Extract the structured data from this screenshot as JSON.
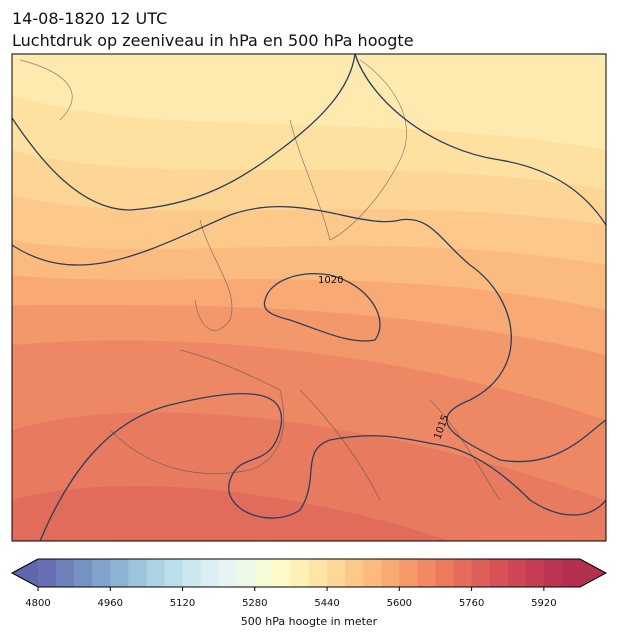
{
  "header": {
    "date": "14-08-1820 12 UTC",
    "subtitle": "Luchtdruk op zeeniveau in hPa en 500 hPa hoogte"
  },
  "map": {
    "contour_labels": [
      "1020",
      "1015"
    ]
  },
  "colorbar": {
    "range": [
      4800,
      6000
    ],
    "ticks": [
      4800,
      4960,
      5120,
      5280,
      5440,
      5600,
      5760,
      5920
    ],
    "label": "500 hPa hoogte in meter",
    "colormap": [
      "#6870b4",
      "#6e81bb",
      "#7792c4",
      "#82a3cb",
      "#8db3d4",
      "#9cc4dc",
      "#abd3e4",
      "#bbdeeb",
      "#cbe7f0",
      "#daeff4",
      "#e6f4f2",
      "#eef8e6",
      "#f6fbd6",
      "#fdfac8",
      "#fef1b6",
      "#fee5a5",
      "#fdd795",
      "#fdc988",
      "#fcba7d",
      "#f9a972",
      "#f69969",
      "#f18a62",
      "#ec7b5e",
      "#e56c5b",
      "#de5e58",
      "#d75157",
      "#cf4656",
      "#c63c53",
      "#bd3450",
      "#b42e4e"
    ],
    "under": "#5f66ae",
    "over": "#b3304d"
  }
}
